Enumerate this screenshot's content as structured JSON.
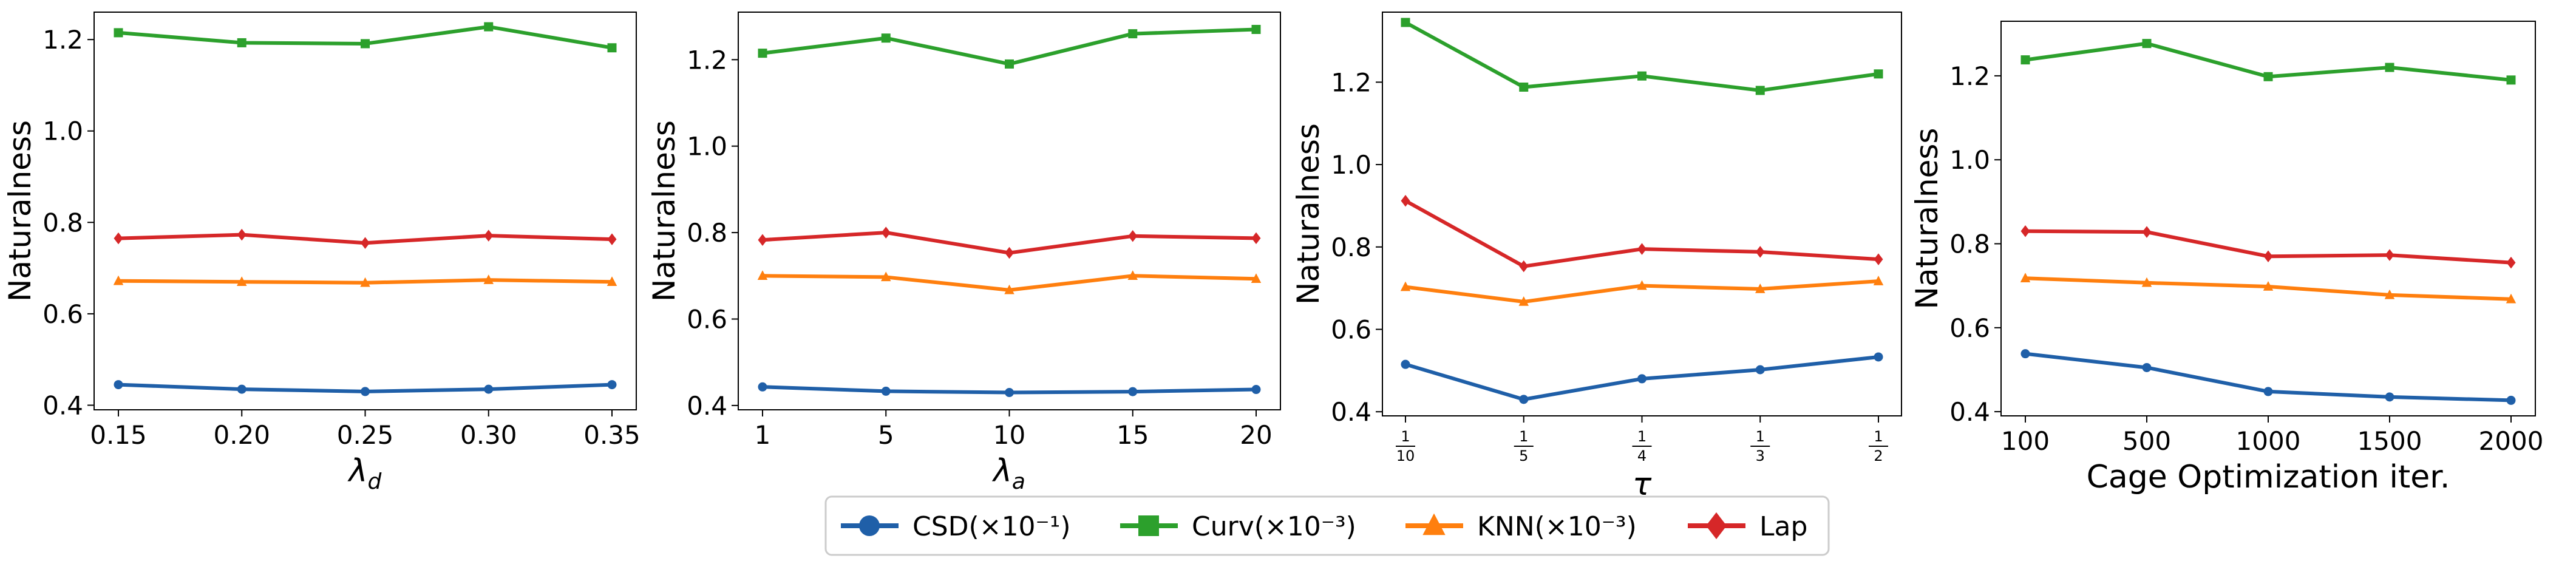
{
  "colors": {
    "CSD": "#1f5fa8",
    "Curv": "#2ca02c",
    "KNN": "#ff7f0e",
    "Lap": "#d62728"
  },
  "legend": {
    "placement": "bottom-center",
    "items": [
      {
        "key": "CSD",
        "label": "CSD(×10⁻¹)",
        "marker": "circle"
      },
      {
        "key": "Curv",
        "label": "Curv(×10⁻³)",
        "marker": "square"
      },
      {
        "key": "KNN",
        "label": "KNN(×10⁻³)",
        "marker": "triangle"
      },
      {
        "key": "Lap",
        "label": "Lap",
        "marker": "diamond"
      }
    ]
  },
  "chart_data": [
    {
      "type": "line",
      "xlabel": "λ",
      "xlabel_sub": "d",
      "ylabel": "Naturalness",
      "x_tick_labels": [
        "0.15",
        "0.20",
        "0.25",
        "0.30",
        "0.35"
      ],
      "ylim": [
        0.39,
        1.26
      ],
      "y_ticks": [
        0.4,
        0.6,
        0.8,
        1.0,
        1.2
      ],
      "y_tick_labels": [
        "0.4",
        "0.6",
        "0.8",
        "1.0",
        "1.2"
      ],
      "grid": false,
      "series": [
        {
          "key": "CSD",
          "name": "CSD(×10⁻¹)",
          "values": [
            0.445,
            0.435,
            0.43,
            0.435,
            0.445
          ]
        },
        {
          "key": "Curv",
          "name": "Curv(×10⁻³)",
          "values": [
            1.215,
            1.193,
            1.191,
            1.228,
            1.182
          ]
        },
        {
          "key": "KNN",
          "name": "KNN(×10⁻³)",
          "values": [
            0.672,
            0.67,
            0.668,
            0.674,
            0.67
          ]
        },
        {
          "key": "Lap",
          "name": "Lap",
          "values": [
            0.765,
            0.773,
            0.755,
            0.771,
            0.763
          ]
        }
      ]
    },
    {
      "type": "line",
      "xlabel": "λ",
      "xlabel_sub": "a",
      "ylabel": "Naturalness",
      "x_tick_labels": [
        "1",
        "5",
        "10",
        "15",
        "20"
      ],
      "ylim": [
        0.39,
        1.31
      ],
      "y_ticks": [
        0.4,
        0.6,
        0.8,
        1.0,
        1.2
      ],
      "y_tick_labels": [
        "0.4",
        "0.6",
        "0.8",
        "1.0",
        "1.2"
      ],
      "grid": false,
      "series": [
        {
          "key": "CSD",
          "name": "CSD(×10⁻¹)",
          "values": [
            0.443,
            0.433,
            0.43,
            0.432,
            0.437
          ]
        },
        {
          "key": "Curv",
          "name": "Curv(×10⁻³)",
          "values": [
            1.215,
            1.25,
            1.19,
            1.26,
            1.27
          ]
        },
        {
          "key": "KNN",
          "name": "KNN(×10⁻³)",
          "values": [
            0.7,
            0.697,
            0.667,
            0.7,
            0.693
          ]
        },
        {
          "key": "Lap",
          "name": "Lap",
          "values": [
            0.783,
            0.8,
            0.753,
            0.792,
            0.787
          ]
        }
      ]
    },
    {
      "type": "line",
      "xlabel": "τ",
      "xlabel_sub": "",
      "ylabel": "Naturalness",
      "x_tick_fracs": [
        [
          "1",
          "10"
        ],
        [
          "1",
          "5"
        ],
        [
          "1",
          "4"
        ],
        [
          "1",
          "3"
        ],
        [
          "1",
          "2"
        ]
      ],
      "ylim": [
        0.39,
        1.37
      ],
      "y_ticks": [
        0.4,
        0.6,
        0.8,
        1.0,
        1.2
      ],
      "y_tick_labels": [
        "0.4",
        "0.6",
        "0.8",
        "1.0",
        "1.2"
      ],
      "grid": false,
      "series": [
        {
          "key": "CSD",
          "name": "CSD(×10⁻¹)",
          "values": [
            0.515,
            0.43,
            0.48,
            0.502,
            0.533
          ]
        },
        {
          "key": "Curv",
          "name": "Curv(×10⁻³)",
          "values": [
            1.345,
            1.188,
            1.215,
            1.18,
            1.22
          ]
        },
        {
          "key": "KNN",
          "name": "KNN(×10⁻³)",
          "values": [
            0.703,
            0.667,
            0.706,
            0.698,
            0.717
          ]
        },
        {
          "key": "Lap",
          "name": "Lap",
          "values": [
            0.912,
            0.753,
            0.795,
            0.788,
            0.77
          ]
        }
      ]
    },
    {
      "type": "line",
      "xlabel": "Cage Optimization iter.",
      "xlabel_sub": "",
      "ylabel": "Naturalness",
      "x_tick_labels": [
        "100",
        "500",
        "1000",
        "1500",
        "2000"
      ],
      "ylim": [
        0.39,
        1.33
      ],
      "y_ticks": [
        0.4,
        0.6,
        0.8,
        1.0,
        1.2
      ],
      "y_tick_labels": [
        "0.4",
        "0.6",
        "0.8",
        "1.0",
        "1.2"
      ],
      "grid": false,
      "series": [
        {
          "key": "CSD",
          "name": "CSD(×10⁻¹)",
          "values": [
            0.538,
            0.505,
            0.448,
            0.435,
            0.427
          ]
        },
        {
          "key": "Curv",
          "name": "Curv(×10⁻³)",
          "values": [
            1.238,
            1.277,
            1.198,
            1.22,
            1.19
          ]
        },
        {
          "key": "KNN",
          "name": "KNN(×10⁻³)",
          "values": [
            0.718,
            0.707,
            0.698,
            0.678,
            0.668
          ]
        },
        {
          "key": "Lap",
          "name": "Lap",
          "values": [
            0.83,
            0.828,
            0.77,
            0.773,
            0.755
          ]
        }
      ]
    }
  ]
}
